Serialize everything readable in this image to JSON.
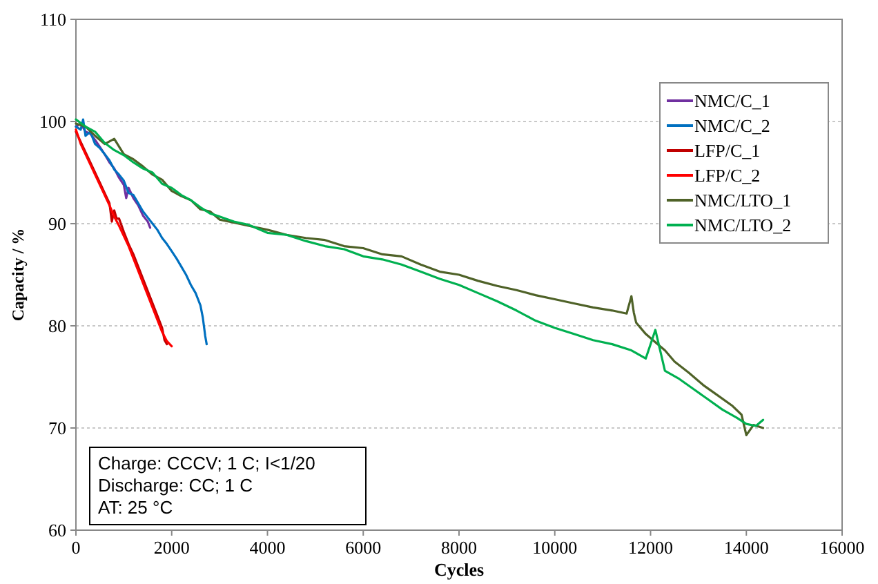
{
  "chart_data": {
    "type": "line",
    "xlabel": "Cycles",
    "ylabel": "Capacity / %",
    "xlim": [
      0,
      16000
    ],
    "ylim": [
      60,
      110
    ],
    "xticks": [
      0,
      2000,
      4000,
      6000,
      8000,
      10000,
      12000,
      14000,
      16000
    ],
    "yticks": [
      60,
      70,
      80,
      90,
      100,
      110
    ],
    "grid": "y",
    "legend": "top right",
    "line_style": "solid",
    "marker": "none",
    "annotations": [
      "Charge:  CCCV; 1 C; I<1/20",
      "Discharge:  CC; 1 C",
      "AT: 25 °C"
    ],
    "series": [
      {
        "name": "NMC/C_1",
        "color": "#7030a0",
        "x": [
          0,
          100,
          200,
          300,
          400,
          500,
          600,
          700,
          800,
          900,
          1000,
          1050,
          1100,
          1200,
          1300,
          1400,
          1500,
          1550
        ],
        "values": [
          99.5,
          99.8,
          99,
          98.8,
          98.2,
          97.5,
          96.8,
          96,
          95.4,
          94.5,
          93.8,
          92.5,
          93.5,
          92.5,
          91.8,
          90.8,
          90.2,
          89.6
        ]
      },
      {
        "name": "NMC/C_2",
        "color": "#0070c0",
        "x": [
          0,
          100,
          150,
          200,
          300,
          400,
          500,
          600,
          700,
          800,
          900,
          1000,
          1100,
          1200,
          1300,
          1400,
          1500,
          1600,
          1700,
          1800,
          1900,
          2000,
          2100,
          2200,
          2300,
          2400,
          2500,
          2550,
          2600,
          2650,
          2700,
          2730
        ],
        "values": [
          99.5,
          99.2,
          100.2,
          98.6,
          99,
          97.8,
          97.4,
          96.8,
          96.2,
          95.3,
          94.8,
          94.2,
          93,
          92.8,
          92,
          91.2,
          90.6,
          90,
          89.4,
          88.6,
          88,
          87.3,
          86.6,
          85.8,
          85,
          84,
          83.2,
          82.6,
          82,
          80.8,
          79,
          78.2
        ]
      },
      {
        "name": "LFP/C_1",
        "color": "#c00000",
        "x": [
          0,
          100,
          200,
          300,
          400,
          500,
          600,
          700,
          750,
          800,
          850,
          900,
          1000,
          1100,
          1200,
          1300,
          1400,
          1500,
          1600,
          1700,
          1800,
          1850,
          1900
        ],
        "values": [
          99,
          98,
          97,
          96,
          95,
          94,
          93,
          92,
          90.2,
          91.3,
          90.5,
          90.5,
          89.2,
          88,
          87,
          85.8,
          84.6,
          83.4,
          82.2,
          81,
          79.8,
          78.6,
          78.2
        ]
      },
      {
        "name": "LFP/C_2",
        "color": "#ff0000",
        "x": [
          0,
          100,
          200,
          300,
          400,
          500,
          600,
          700,
          800,
          900,
          1000,
          1100,
          1200,
          1300,
          1400,
          1500,
          1600,
          1700,
          1800,
          1900,
          2000
        ],
        "values": [
          99.2,
          97.8,
          96.8,
          95.8,
          94.8,
          93.8,
          92.8,
          91.8,
          90.7,
          89.8,
          88.8,
          87.8,
          86.6,
          85.4,
          84.2,
          83,
          81.8,
          80.6,
          79.4,
          78.5,
          78
        ]
      },
      {
        "name": "NMC/LTO_1",
        "color": "#4f6228",
        "x": [
          0,
          200,
          400,
          600,
          800,
          1000,
          1200,
          1400,
          1600,
          1800,
          2000,
          2200,
          2400,
          2600,
          2800,
          3000,
          3300,
          3600,
          4000,
          4400,
          4800,
          5200,
          5600,
          6000,
          6400,
          6800,
          7200,
          7600,
          8000,
          8400,
          8800,
          9200,
          9600,
          10000,
          10400,
          10800,
          11200,
          11500,
          11600,
          11650,
          11700,
          11900,
          12100,
          12300,
          12500,
          12800,
          13100,
          13400,
          13700,
          13900,
          14000,
          14150,
          14350
        ],
        "values": [
          99.8,
          99.5,
          98.6,
          97.8,
          98.3,
          96.8,
          96.3,
          95.6,
          94.8,
          94.3,
          93.2,
          92.7,
          92.3,
          91.4,
          91.2,
          90.4,
          90.1,
          89.8,
          89.4,
          88.9,
          88.6,
          88.4,
          87.8,
          87.6,
          87,
          86.8,
          86,
          85.3,
          85,
          84.4,
          83.9,
          83.5,
          83,
          82.6,
          82.2,
          81.8,
          81.5,
          81.2,
          82.9,
          81.3,
          80.3,
          79.2,
          78.4,
          77.6,
          76.5,
          75.4,
          74.2,
          73.2,
          72.2,
          71.3,
          69.3,
          70.3,
          70
        ]
      },
      {
        "name": "NMC/LTO_2",
        "color": "#00b050",
        "x": [
          0,
          200,
          400,
          600,
          800,
          1000,
          1200,
          1400,
          1600,
          1800,
          2000,
          2200,
          2400,
          2600,
          2800,
          3000,
          3300,
          3600,
          4000,
          4400,
          4800,
          5200,
          5600,
          6000,
          6400,
          6800,
          7200,
          7600,
          8000,
          8400,
          8800,
          9200,
          9600,
          10000,
          10400,
          10800,
          11200,
          11600,
          11900,
          12100,
          12300,
          12600,
          12900,
          13200,
          13500,
          13800,
          14000,
          14200,
          14350
        ],
        "values": [
          100.2,
          99.5,
          99,
          97.9,
          97.2,
          96.7,
          96,
          95.4,
          95,
          93.9,
          93.5,
          92.8,
          92.3,
          91.6,
          91,
          90.7,
          90.2,
          89.9,
          89.1,
          88.9,
          88.3,
          87.8,
          87.5,
          86.8,
          86.5,
          86,
          85.3,
          84.6,
          84,
          83.2,
          82.4,
          81.5,
          80.5,
          79.8,
          79.2,
          78.6,
          78.2,
          77.6,
          76.8,
          79.6,
          75.6,
          74.8,
          73.8,
          72.8,
          71.8,
          71,
          70.4,
          70.2,
          70.8
        ]
      }
    ]
  }
}
